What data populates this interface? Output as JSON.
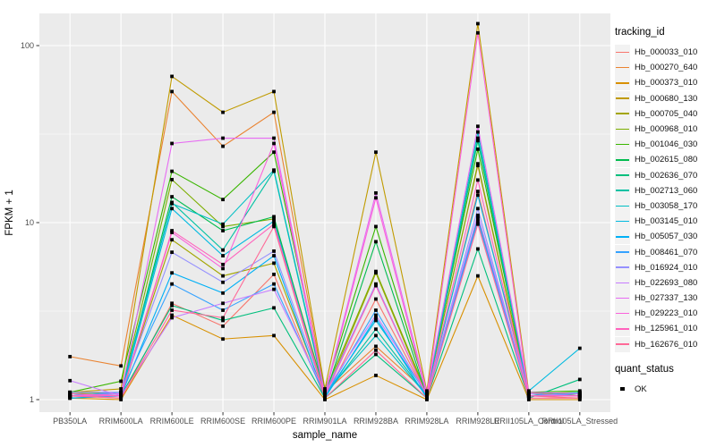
{
  "chart_data": {
    "type": "line",
    "title": "",
    "xlabel": "sample_name",
    "ylabel": "FPKM + 1",
    "y_scale": "log10",
    "y_ticks": [
      1,
      10,
      100
    ],
    "y_minor": [
      3.162,
      31.62
    ],
    "panel_bg": "#EBEBEB",
    "grid_color": "#FFFFFF",
    "point_color": "#000000",
    "point_shape": "square",
    "legend_position": "right",
    "categories": [
      "PB350LA",
      "RRIM600LA",
      "RRIM600LE",
      "RRIM600SE",
      "RRIM600PE",
      "RRIM901LA",
      "RRIM928BA",
      "RRIM928LA",
      "RRIM928LE",
      "RRII105LA_Control",
      "RRII105LA_Stressed"
    ],
    "series": [
      {
        "name": "Hb_000033_010",
        "color": "#F8766D",
        "values": [
          1.05,
          1.02,
          3.5,
          2.6,
          5.1,
          1.02,
          3.7,
          1.05,
          15,
          1.05,
          1.02
        ]
      },
      {
        "name": "Hb_000270_640",
        "color": "#EA8331",
        "values": [
          1.75,
          1.55,
          55,
          27,
          42,
          1.1,
          2.0,
          1.1,
          21,
          1.05,
          1.05
        ]
      },
      {
        "name": "Hb_000373_010",
        "color": "#D89000",
        "values": [
          1.02,
          1.0,
          3.0,
          2.2,
          2.3,
          1.0,
          1.37,
          1.0,
          5.0,
          1.0,
          1.0
        ]
      },
      {
        "name": "Hb_000680_130",
        "color": "#C09B00",
        "values": [
          1.1,
          1.15,
          67,
          42,
          55,
          1.15,
          25,
          1.12,
          133,
          1.1,
          1.05
        ]
      },
      {
        "name": "Hb_000705_040",
        "color": "#A3A500",
        "values": [
          1.05,
          1.05,
          8.0,
          5.0,
          5.9,
          1.05,
          5.2,
          1.05,
          10.5,
          1.05,
          1.08
        ]
      },
      {
        "name": "Hb_000968_010",
        "color": "#7CAE00",
        "values": [
          1.08,
          1.1,
          17.5,
          9.5,
          10.5,
          1.1,
          5.3,
          1.08,
          21.5,
          1.08,
          1.1
        ]
      },
      {
        "name": "Hb_001046_030",
        "color": "#39B600",
        "values": [
          1.1,
          1.27,
          19.5,
          13.5,
          25,
          1.12,
          9.5,
          1.1,
          26,
          1.1,
          1.12
        ]
      },
      {
        "name": "Hb_002615_080",
        "color": "#00BB4E",
        "values": [
          1.05,
          1.08,
          14,
          9.0,
          10.8,
          1.05,
          7.8,
          1.05,
          29,
          1.05,
          1.08
        ]
      },
      {
        "name": "Hb_002636_070",
        "color": "#00BF7D",
        "values": [
          1.02,
          1.05,
          3.4,
          2.8,
          3.3,
          1.02,
          1.8,
          1.02,
          7.1,
          1.02,
          1.3
        ]
      },
      {
        "name": "Hb_002713_060",
        "color": "#00C1A3",
        "values": [
          1.05,
          1.08,
          13,
          7.0,
          19.5,
          1.05,
          2.5,
          1.05,
          30,
          1.08,
          1.05
        ]
      },
      {
        "name": "Hb_003058_170",
        "color": "#00BFC4",
        "values": [
          1.05,
          1.1,
          12.8,
          9.8,
          19.8,
          1.08,
          2.3,
          1.05,
          32.5,
          1.05,
          1.1
        ]
      },
      {
        "name": "Hb_003145_010",
        "color": "#00BAE0",
        "values": [
          1.08,
          1.05,
          12,
          6.5,
          10.2,
          1.05,
          2.8,
          1.08,
          14.3,
          1.12,
          1.95
        ]
      },
      {
        "name": "Hb_005057_030",
        "color": "#00B0F6",
        "values": [
          1.02,
          1.05,
          5.2,
          4.0,
          6.5,
          1.02,
          2.9,
          1.02,
          10.8,
          1.05,
          1.05
        ]
      },
      {
        "name": "Hb_008461_070",
        "color": "#35A2FF",
        "values": [
          1.05,
          1.1,
          4.5,
          3.2,
          4.5,
          1.05,
          3.2,
          1.05,
          10.2,
          1.05,
          1.08
        ]
      },
      {
        "name": "Hb_016924_010",
        "color": "#9590FF",
        "values": [
          1.1,
          1.1,
          6.8,
          4.6,
          6.9,
          1.08,
          4.5,
          1.05,
          12,
          1.05,
          1.05
        ]
      },
      {
        "name": "Hb_022693_080",
        "color": "#C77CFF",
        "values": [
          1.28,
          1.05,
          2.9,
          3.5,
          4.2,
          1.1,
          3.0,
          1.08,
          11,
          1.08,
          1.05
        ]
      },
      {
        "name": "Hb_027337_130",
        "color": "#E76BF3",
        "values": [
          1.05,
          1.08,
          28,
          30,
          30,
          1.08,
          14.7,
          1.1,
          35,
          1.1,
          1.08
        ]
      },
      {
        "name": "Hb_029223_010",
        "color": "#FA62DB",
        "values": [
          1.05,
          1.05,
          8.8,
          5.5,
          28,
          1.05,
          13.8,
          1.05,
          118,
          1.05,
          1.05
        ]
      },
      {
        "name": "Hb_125961_010",
        "color": "#FF62BC",
        "values": [
          1.08,
          1.05,
          9.0,
          5.8,
          9.8,
          1.05,
          4.4,
          1.05,
          17.4,
          1.05,
          1.05
        ]
      },
      {
        "name": "Hb_162676_010",
        "color": "#FF6A98",
        "values": [
          1.05,
          1.02,
          3.2,
          2.9,
          9.5,
          1.02,
          1.9,
          1.02,
          9.8,
          1.02,
          1.02
        ]
      }
    ]
  },
  "legend": {
    "tracking_title": "tracking_id",
    "quant_title": "quant_status",
    "quant_items": [
      {
        "label": "OK",
        "marker": "black-square"
      }
    ]
  }
}
